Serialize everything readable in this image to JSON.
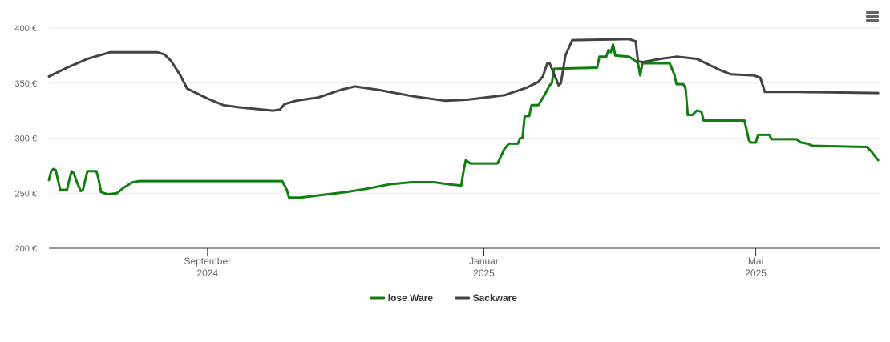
{
  "chart_data": {
    "type": "line",
    "y_axis": {
      "min": 200,
      "max": 400,
      "ticks": [
        200,
        250,
        300,
        350,
        400
      ],
      "tick_labels": [
        "200 €",
        "250 €",
        "300 €",
        "350 €",
        "400 €"
      ]
    },
    "x_axis": {
      "start": "2024-06-23",
      "end": "2025-06-25",
      "ticks": [
        {
          "date": "2024-09-01",
          "month": "September",
          "year": "2024"
        },
        {
          "date": "2025-01-01",
          "month": "Januar",
          "year": "2025"
        },
        {
          "date": "2025-05-01",
          "month": "Mai",
          "year": "2025"
        }
      ]
    },
    "grid": true,
    "legend_position": "bottom-center",
    "series": [
      {
        "name": "lose Ware",
        "color": "#107f10",
        "points": [
          [
            "2024-06-23",
            262
          ],
          [
            "2024-06-24",
            270
          ],
          [
            "2024-06-25",
            272
          ],
          [
            "2024-06-26",
            271
          ],
          [
            "2024-06-27",
            262
          ],
          [
            "2024-06-28",
            253
          ],
          [
            "2024-07-01",
            253
          ],
          [
            "2024-07-02",
            262
          ],
          [
            "2024-07-03",
            270
          ],
          [
            "2024-07-04",
            268
          ],
          [
            "2024-07-05",
            262
          ],
          [
            "2024-07-07",
            252
          ],
          [
            "2024-07-08",
            253
          ],
          [
            "2024-07-10",
            270
          ],
          [
            "2024-07-14",
            270
          ],
          [
            "2024-07-15",
            262
          ],
          [
            "2024-07-16",
            251
          ],
          [
            "2024-07-19",
            249
          ],
          [
            "2024-07-23",
            250
          ],
          [
            "2024-07-26",
            255
          ],
          [
            "2024-07-30",
            260
          ],
          [
            "2024-08-02",
            261
          ],
          [
            "2024-10-04",
            261
          ],
          [
            "2024-10-06",
            253
          ],
          [
            "2024-10-07",
            246
          ],
          [
            "2024-10-12",
            246
          ],
          [
            "2024-10-20",
            248
          ],
          [
            "2024-11-01",
            251
          ],
          [
            "2024-11-10",
            254
          ],
          [
            "2024-11-20",
            258
          ],
          [
            "2024-11-30",
            260
          ],
          [
            "2024-12-10",
            260
          ],
          [
            "2024-12-17",
            258
          ],
          [
            "2024-12-22",
            257
          ],
          [
            "2024-12-23",
            270
          ],
          [
            "2024-12-24",
            280
          ],
          [
            "2024-12-26",
            277
          ],
          [
            "2025-01-07",
            277
          ],
          [
            "2025-01-10",
            290
          ],
          [
            "2025-01-12",
            295
          ],
          [
            "2025-01-13",
            295
          ],
          [
            "2025-01-16",
            295
          ],
          [
            "2025-01-17",
            300
          ],
          [
            "2025-01-18",
            300
          ],
          [
            "2025-01-19",
            320
          ],
          [
            "2025-01-21",
            320
          ],
          [
            "2025-01-22",
            330
          ],
          [
            "2025-01-25",
            330
          ],
          [
            "2025-01-28",
            340
          ],
          [
            "2025-01-30",
            348
          ],
          [
            "2025-01-31",
            350
          ],
          [
            "2025-02-01",
            363
          ],
          [
            "2025-02-20",
            364
          ],
          [
            "2025-02-21",
            374
          ],
          [
            "2025-02-24",
            374
          ],
          [
            "2025-02-25",
            380
          ],
          [
            "2025-02-26",
            378
          ],
          [
            "2025-02-27",
            385
          ],
          [
            "2025-02-28",
            375
          ],
          [
            "2025-03-06",
            374
          ],
          [
            "2025-03-09",
            370
          ],
          [
            "2025-03-10",
            368
          ],
          [
            "2025-03-11",
            357
          ],
          [
            "2025-03-12",
            368
          ],
          [
            "2025-03-24",
            368
          ],
          [
            "2025-03-26",
            358
          ],
          [
            "2025-03-27",
            349
          ],
          [
            "2025-03-30",
            349
          ],
          [
            "2025-03-31",
            345
          ],
          [
            "2025-04-01",
            321
          ],
          [
            "2025-04-03",
            321
          ],
          [
            "2025-04-05",
            325
          ],
          [
            "2025-04-07",
            324
          ],
          [
            "2025-04-08",
            316
          ],
          [
            "2025-04-26",
            316
          ],
          [
            "2025-04-28",
            298
          ],
          [
            "2025-04-29",
            296
          ],
          [
            "2025-05-01",
            296
          ],
          [
            "2025-05-02",
            303
          ],
          [
            "2025-05-07",
            303
          ],
          [
            "2025-05-08",
            299
          ],
          [
            "2025-05-19",
            299
          ],
          [
            "2025-05-21",
            296
          ],
          [
            "2025-05-24",
            295
          ],
          [
            "2025-05-26",
            293
          ],
          [
            "2025-06-19",
            292
          ],
          [
            "2025-06-21",
            288
          ],
          [
            "2025-06-24",
            280
          ]
        ]
      },
      {
        "name": "Sackware",
        "color": "#434343",
        "points": [
          [
            "2024-06-23",
            356
          ],
          [
            "2024-07-01",
            364
          ],
          [
            "2024-07-10",
            372
          ],
          [
            "2024-07-20",
            378
          ],
          [
            "2024-07-25",
            378
          ],
          [
            "2024-08-10",
            378
          ],
          [
            "2024-08-13",
            376
          ],
          [
            "2024-08-16",
            370
          ],
          [
            "2024-08-20",
            357
          ],
          [
            "2024-08-23",
            345
          ],
          [
            "2024-09-01",
            336
          ],
          [
            "2024-09-08",
            330
          ],
          [
            "2024-09-15",
            328
          ],
          [
            "2024-09-30",
            325
          ],
          [
            "2024-10-03",
            326
          ],
          [
            "2024-10-05",
            331
          ],
          [
            "2024-10-10",
            334
          ],
          [
            "2024-10-20",
            337
          ],
          [
            "2024-10-30",
            344
          ],
          [
            "2024-11-05",
            347
          ],
          [
            "2024-11-15",
            344
          ],
          [
            "2024-12-01",
            338
          ],
          [
            "2024-12-15",
            334
          ],
          [
            "2024-12-25",
            335
          ],
          [
            "2025-01-10",
            339
          ],
          [
            "2025-01-20",
            346
          ],
          [
            "2025-01-25",
            351
          ],
          [
            "2025-01-27",
            356
          ],
          [
            "2025-01-29",
            368
          ],
          [
            "2025-01-30",
            368
          ],
          [
            "2025-02-03",
            348
          ],
          [
            "2025-02-04",
            350
          ],
          [
            "2025-02-06",
            375
          ],
          [
            "2025-02-09",
            389
          ],
          [
            "2025-03-06",
            390
          ],
          [
            "2025-03-09",
            388
          ],
          [
            "2025-03-10",
            370
          ],
          [
            "2025-03-12",
            369
          ],
          [
            "2025-03-20",
            372
          ],
          [
            "2025-03-27",
            374
          ],
          [
            "2025-04-05",
            372
          ],
          [
            "2025-04-15",
            362
          ],
          [
            "2025-04-20",
            358
          ],
          [
            "2025-04-30",
            357
          ],
          [
            "2025-05-03",
            355
          ],
          [
            "2025-05-05",
            342
          ],
          [
            "2025-05-20",
            342
          ],
          [
            "2025-06-24",
            341
          ]
        ]
      }
    ]
  },
  "ui": {
    "menu_icon": "hamburger-menu-icon"
  }
}
